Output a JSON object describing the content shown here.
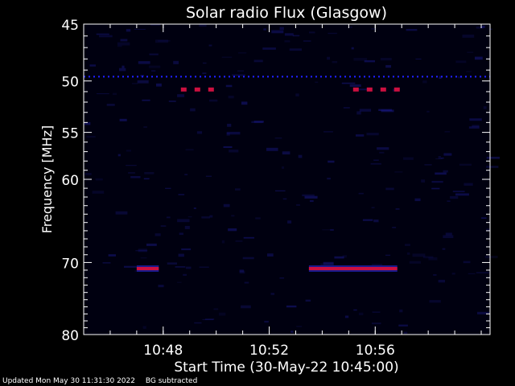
{
  "chart_data": {
    "type": "heatmap",
    "title": "Solar radio Flux (Glasgow)",
    "xlabel": "Start Time (30-May-22 10:45:00)",
    "ylabel": "Frequency [MHz]",
    "x_range": [
      "10:45:00",
      "11:00:20"
    ],
    "y_range": [
      45,
      80
    ],
    "y_reversed": true,
    "x_ticks": [
      "10:48",
      "10:52",
      "10:56"
    ],
    "y_ticks": [
      45,
      50,
      55,
      60,
      70,
      80
    ],
    "background_subtracted": true,
    "colors": {
      "background": "#000010",
      "weak": "#1a1a8c",
      "strong": "#cc1040",
      "line": "#2020ff"
    },
    "features": [
      {
        "label": "continuous-line-49.6MHz",
        "freq_mhz": 49.6,
        "start": "10:45:00",
        "end": "11:00:20",
        "intensity": "medium"
      },
      {
        "label": "dashes-51MHz-a",
        "freq_mhz": 50.8,
        "start": "10:48:40",
        "end": "10:50:10",
        "intensity": "high"
      },
      {
        "label": "dashes-51MHz-b",
        "freq_mhz": 50.8,
        "start": "10:55:10",
        "end": "10:57:00",
        "intensity": "high"
      },
      {
        "label": "band-71MHz-a",
        "freq_mhz": 70.8,
        "start": "10:47:00",
        "end": "10:47:50",
        "intensity": "high"
      },
      {
        "label": "band-71MHz-b",
        "freq_mhz": 70.8,
        "start": "10:53:30",
        "end": "10:56:50",
        "intensity": "high"
      }
    ]
  },
  "footer": {
    "updated": "Updated Mon May 30 11:31:30 2022",
    "note": "BG subtracted"
  }
}
